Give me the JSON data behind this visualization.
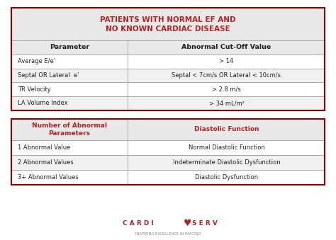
{
  "title": "PATIENTS WITH NORMAL EF AND\nNO KNOWN CARDIAC DISEASE",
  "title_color": "#b22222",
  "header_bg": "#e8e8e8",
  "table1_headers": [
    "Parameter",
    "Abnormal Cut-Off Value"
  ],
  "table1_rows": [
    [
      "Average E/e’",
      "> 14"
    ],
    [
      "Septal OR Lateral  e’",
      "Septal < 7cm/s OR Lateral < 10cm/s"
    ],
    [
      "TR Velocity",
      "> 2.8 m/s"
    ],
    [
      "LA Volume Index",
      "> 34 mL/m²"
    ]
  ],
  "table2_headers": [
    "Number of Abnormal\nParameters",
    "Diastolic Function"
  ],
  "table2_rows": [
    [
      "1 Abnormal Value",
      "Normal Diastolic Function"
    ],
    [
      "2 Abnormal Values",
      "Indeterminate Diastolic Dysfunction"
    ],
    [
      "3+ Abnormal Values",
      "Diastolic Dysfunction"
    ]
  ],
  "border_color": "#8b0000",
  "line_color": "#aaaaaa",
  "text_color": "#222222",
  "logo_heart": "♥",
  "logo_sub": "INSPIRING EXCELLENCE IN IMAGING",
  "logo_color": "#b22222",
  "bg_color": "#ffffff"
}
